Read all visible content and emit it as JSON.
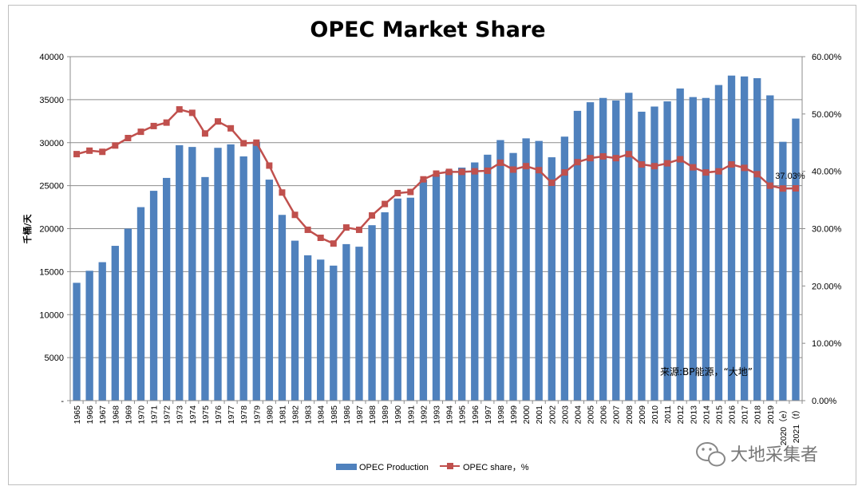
{
  "chart_data": {
    "type": "bar",
    "title": "OPEC Market Share",
    "ylabel": "千桶/天",
    "ylim": [
      0,
      40000
    ],
    "y_ticks": [
      "-",
      "5000",
      "10000",
      "15000",
      "20000",
      "25000",
      "30000",
      "35000",
      "40000"
    ],
    "y2lim": [
      0,
      60
    ],
    "y2_ticks": [
      "0.00%",
      "10.00%",
      "20.00%",
      "30.00%",
      "40.00%",
      "50.00%",
      "60.00%"
    ],
    "categories": [
      "1965",
      "1966",
      "1967",
      "1968",
      "1969",
      "1970",
      "1971",
      "1972",
      "1973",
      "1974",
      "1975",
      "1976",
      "1977",
      "1978",
      "1979",
      "1980",
      "1981",
      "1982",
      "1983",
      "1984",
      "1985",
      "1986",
      "1987",
      "1988",
      "1989",
      "1990",
      "1991",
      "1992",
      "1993",
      "1994",
      "1995",
      "1996",
      "1997",
      "1998",
      "1999",
      "2000",
      "2001",
      "2002",
      "2003",
      "2004",
      "2005",
      "2006",
      "2007",
      "2008",
      "2009",
      "2010",
      "2011",
      "2012",
      "2013",
      "2014",
      "2015",
      "2016",
      "2017",
      "2018",
      "2019",
      "2020（e）",
      "2021（f）"
    ],
    "series": [
      {
        "name": "OPEC Production",
        "kind": "bar",
        "axis": "left",
        "color": "#4f81bd",
        "values": [
          13700,
          15100,
          16100,
          18000,
          20000,
          22500,
          24400,
          25900,
          29700,
          29500,
          26000,
          29400,
          29800,
          28400,
          30100,
          25700,
          21600,
          18600,
          16900,
          16400,
          15700,
          18200,
          17900,
          20400,
          21900,
          23500,
          23600,
          25700,
          26300,
          26800,
          27100,
          27700,
          28600,
          30300,
          28800,
          30500,
          30200,
          28300,
          30700,
          33700,
          34700,
          35200,
          34900,
          35800,
          33600,
          34200,
          34800,
          36300,
          35300,
          35200,
          36700,
          37800,
          37700,
          37500,
          35500,
          30100,
          32800
        ]
      },
      {
        "name": "OPEC share，%",
        "kind": "line",
        "axis": "right",
        "color": "#c0504d",
        "values": [
          43.0,
          43.6,
          43.4,
          44.5,
          45.8,
          46.9,
          47.9,
          48.5,
          50.8,
          50.2,
          46.6,
          48.7,
          47.5,
          44.9,
          45.0,
          41.0,
          36.3,
          32.4,
          29.8,
          28.4,
          27.4,
          30.2,
          29.8,
          32.3,
          34.3,
          36.2,
          36.4,
          38.6,
          39.6,
          39.9,
          39.9,
          40.0,
          40.1,
          41.5,
          40.3,
          40.9,
          40.2,
          38.0,
          39.8,
          41.6,
          42.3,
          42.6,
          42.3,
          43.0,
          41.2,
          40.9,
          41.4,
          42.1,
          40.7,
          39.8,
          40.0,
          41.2,
          40.6,
          39.5,
          37.5,
          37.0,
          37.03
        ]
      }
    ],
    "data_labels": [
      {
        "series": 1,
        "category": "2021（f）",
        "text": "37.03%"
      }
    ],
    "legend": {
      "position": "bottom",
      "entries": [
        {
          "label": "OPEC Production",
          "color": "#4f81bd"
        },
        {
          "label": "OPEC share，%",
          "color": "#c0504d"
        }
      ]
    },
    "annotation": "来源:BP能源，“大地”",
    "grid": true
  },
  "watermark": {
    "text": "大地采集者",
    "icon": "wechat-icon"
  }
}
